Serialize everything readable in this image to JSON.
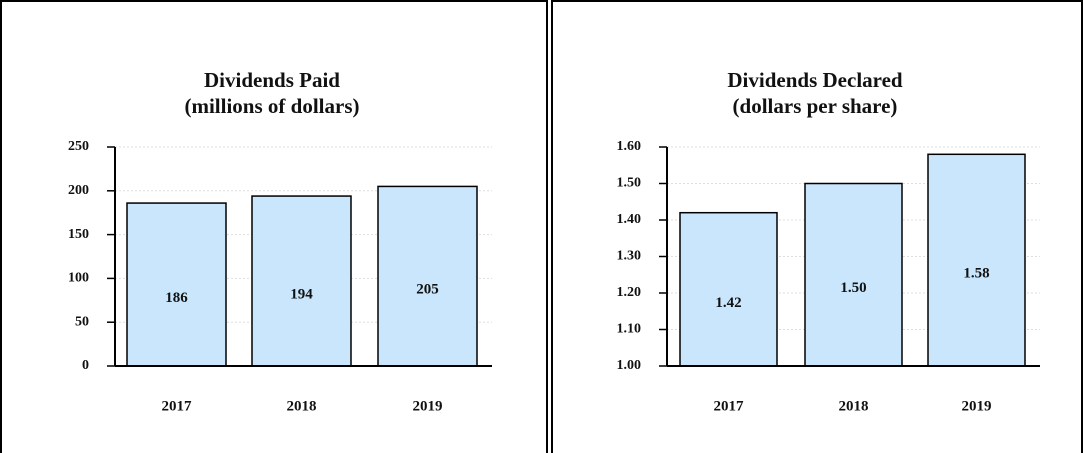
{
  "chart_data": [
    {
      "type": "bar",
      "title": "Dividends Paid",
      "subtitle": "(millions of dollars)",
      "categories": [
        "2017",
        "2018",
        "2019"
      ],
      "values": [
        186,
        194,
        205
      ],
      "color": "#c9e6fc",
      "ylim": [
        0,
        250
      ],
      "yticks": [
        0,
        50,
        100,
        150,
        200,
        250
      ],
      "grid": true
    },
    {
      "type": "bar",
      "title": "Dividends Declared",
      "subtitle": "(dollars per share)",
      "categories": [
        "2017",
        "2018",
        "2019"
      ],
      "values": [
        1.42,
        1.5,
        1.58
      ],
      "value_labels": [
        "1.42",
        "1.50",
        "1.58"
      ],
      "color": "#c9e6fc",
      "ylim": [
        1,
        1.6
      ],
      "yticks": [
        {
          "value": 1,
          "label": "1.00"
        },
        {
          "value": 1.1,
          "label": "1.10"
        },
        {
          "value": 1.2,
          "label": "1.20"
        },
        {
          "value": 1.3,
          "label": "1.30"
        },
        {
          "value": 1.4,
          "label": "1.40"
        },
        {
          "value": 1.5,
          "label": "1.50"
        },
        {
          "value": 1.6,
          "label": "1.60"
        }
      ],
      "grid": true
    }
  ]
}
